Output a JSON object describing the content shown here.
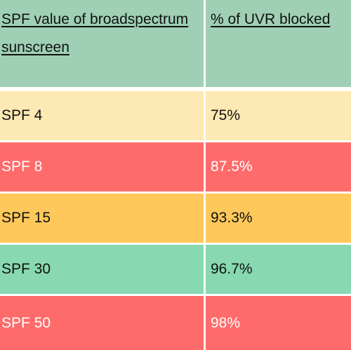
{
  "table": {
    "header": [
      "SPF value of broadspectrum sunscreen",
      "% of UVR blocked"
    ],
    "rows": [
      [
        "SPF 4",
        "75%"
      ],
      [
        "SPF 8",
        "87.5%"
      ],
      [
        "SPF 15",
        "93.3%"
      ],
      [
        "SPF 30",
        "96.7%"
      ],
      [
        "SPF 50",
        "98%"
      ]
    ]
  }
}
